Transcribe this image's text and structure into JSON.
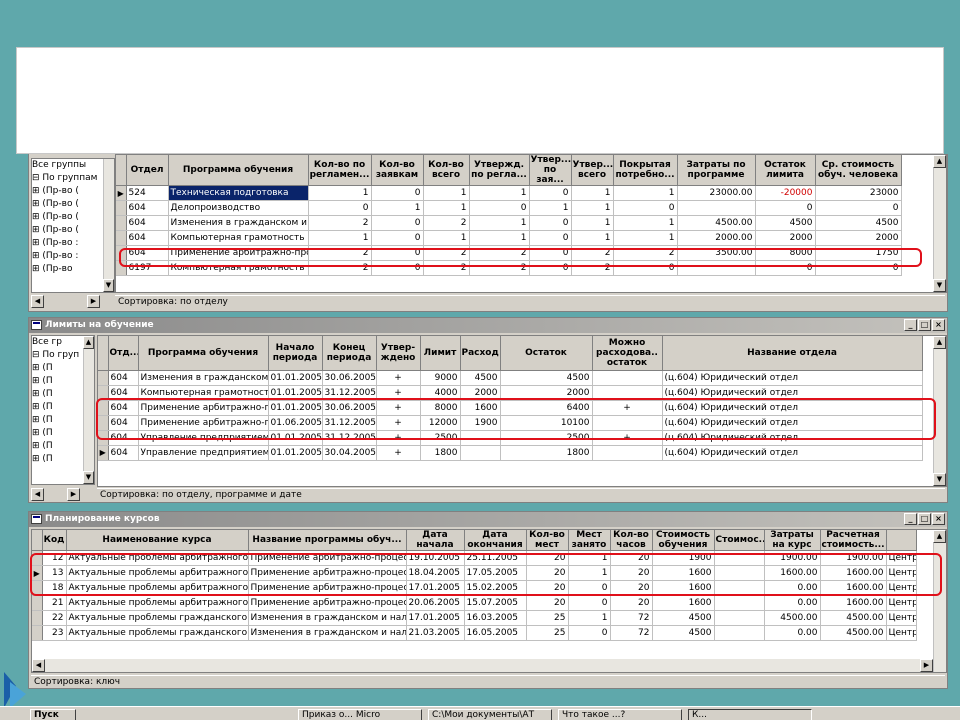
{
  "top": {
    "headers": [
      "Отдел",
      "Программа обучения",
      "Кол-во по регламен...",
      "Кол-во заявкам",
      "Кол-во всего",
      "Утвержд. по регла...",
      "Утвер... по зая...",
      "Утвер... всего",
      "Покрытая потребно...",
      "Затраты по программе",
      "Остаток лимита",
      "Ср. стоимость обуч. человека"
    ],
    "rows": [
      [
        "524",
        "Техническая подготовка",
        "1",
        "0",
        "1",
        "1",
        "0",
        "1",
        "1",
        "23000.00",
        "-20000",
        "23000"
      ],
      [
        "604",
        "Делопроизводство",
        "0",
        "1",
        "1",
        "0",
        "1",
        "1",
        "0",
        "",
        "0",
        "0"
      ],
      [
        "604",
        "Изменения в гражданском и",
        "2",
        "0",
        "2",
        "1",
        "0",
        "1",
        "1",
        "4500.00",
        "4500",
        "4500"
      ],
      [
        "604",
        "Компьютерная грамотность",
        "1",
        "0",
        "1",
        "1",
        "0",
        "1",
        "1",
        "2000.00",
        "2000",
        "2000"
      ],
      [
        "604",
        "Применение арбитражно-проц",
        "2",
        "0",
        "2",
        "2",
        "0",
        "2",
        "2",
        "3500.00",
        "8000",
        "1750"
      ],
      [
        "6197",
        "Компьютерная грамотность",
        "2",
        "0",
        "2",
        "2",
        "0",
        "2",
        "0",
        "",
        "0",
        "0"
      ]
    ],
    "tree": [
      "Все группы",
      "По группам",
      "(Пр-во (",
      "(Пр-во (",
      "(Пр-во (",
      "(Пр-во (",
      "(Пр-во :",
      "(Пр-во :",
      "(Пр-во"
    ],
    "status": "Сортировка: по отделу"
  },
  "mid": {
    "title": "Лимиты на обучение",
    "headers": [
      "Отд...",
      "Программа обучения",
      "Начало периода",
      "Конец периода",
      "Утвер-ждено",
      "Лимит",
      "Расход",
      "Остаток",
      "Можно расходова.. остаток",
      "Название отдела"
    ],
    "rows": [
      [
        "604",
        "Изменения в гражданском (",
        "01.01.2005",
        "30.06.2005",
        "+",
        "9000",
        "4500",
        "4500",
        "",
        "(ц.604) Юридический отдел"
      ],
      [
        "604",
        "Компьютерная грамотность",
        "01.01.2005",
        "31.12.2005",
        "+",
        "4000",
        "2000",
        "2000",
        "",
        "(ц.604) Юридический отдел"
      ],
      [
        "604",
        "Применение арбитражно-пр",
        "01.01.2005",
        "30.06.2005",
        "+",
        "8000",
        "1600",
        "6400",
        "+",
        "(ц.604) Юридический отдел"
      ],
      [
        "604",
        "Применение арбитражно-пр",
        "01.06.2005",
        "31.12.2005",
        "+",
        "12000",
        "1900",
        "10100",
        "",
        "(ц.604) Юридический отдел"
      ],
      [
        "604",
        "Управление предприятием",
        "01.01.2005",
        "31.12.2005",
        "+",
        "2500",
        "",
        "2500",
        "+",
        "(ц.604) Юридический отдел"
      ],
      [
        "604",
        "Управление предприятием",
        "01.01.2005",
        "30.04.2005",
        "+",
        "1800",
        "",
        "1800",
        "",
        "(ц.604) Юридический отдел"
      ]
    ],
    "tree": [
      "Все гр",
      "По груп",
      "(П",
      "(П",
      "(П",
      "(П",
      "(П",
      "(П",
      "(П",
      "(П"
    ],
    "status": "Сортировка: по отделу, программе и дате"
  },
  "bot": {
    "title": "Планирование курсов",
    "headers": [
      "Код",
      "Наименование курса",
      "Название программы обуч...",
      "Дата начала",
      "Дата окончания",
      "Кол-во мест",
      "Мест занято",
      "Кол-во часов",
      "Стоимость обучения",
      "Стоимос...",
      "Затраты на курс",
      "Расчетная стоимость...",
      ""
    ],
    "rows": [
      [
        "12",
        "Актуальные проблемы арбитражного п",
        "Применение арбитражно-процесс",
        "19.10.2005",
        "25.11.2005",
        "20",
        "1",
        "20",
        "1900",
        "",
        "1900.00",
        "1900.00",
        "Центр"
      ],
      [
        "13",
        "Актуальные проблемы арбитражного п",
        "Применение арбитражно-процесс",
        "18.04.2005",
        "17.05.2005",
        "20",
        "1",
        "20",
        "1600",
        "",
        "1600.00",
        "1600.00",
        "Центр"
      ],
      [
        "18",
        "Актуальные проблемы арбитражного п",
        "Применение арбитражно-процесс",
        "17.01.2005",
        "15.02.2005",
        "20",
        "0",
        "20",
        "1600",
        "",
        "0.00",
        "1600.00",
        "Центр"
      ],
      [
        "21",
        "Актуальные проблемы арбитражного п",
        "Применение арбитражно-процесс",
        "20.06.2005",
        "15.07.2005",
        "20",
        "0",
        "20",
        "1600",
        "",
        "0.00",
        "1600.00",
        "Центр"
      ],
      [
        "22",
        "Актуальные проблемы гражданского п",
        "Изменения в гражданском и нало",
        "17.01.2005",
        "16.03.2005",
        "25",
        "1",
        "72",
        "4500",
        "",
        "4500.00",
        "4500.00",
        "Центр"
      ],
      [
        "23",
        "Актуальные проблемы гражданского п",
        "Изменения в гражданском и нало",
        "21.03.2005",
        "16.05.2005",
        "25",
        "0",
        "72",
        "4500",
        "",
        "0.00",
        "4500.00",
        "Центр"
      ]
    ],
    "status": "Сортировка: ключ"
  },
  "taskbar": [
    "Пуск",
    "Приказ о... Micro",
    "C:\\Мои документы\\АТ",
    "Что такое ...?",
    "К..."
  ],
  "colors": {
    "highlight": "#e0101a",
    "selection": "#0a246a",
    "negative": "#d00000"
  }
}
